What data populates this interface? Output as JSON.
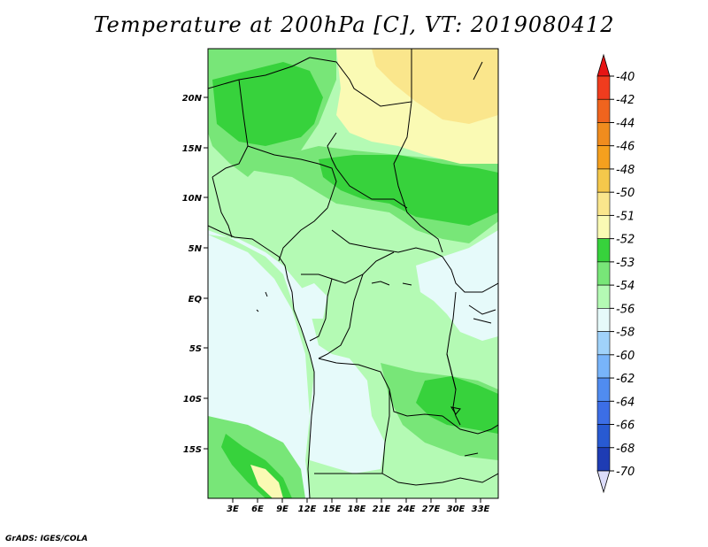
{
  "title": "Temperature at 200hPa [C], VT: 2019080412",
  "footer": "GrADS: IGES/COLA",
  "map": {
    "lat_labels": [
      "20N",
      "15N",
      "10N",
      "5N",
      "EQ",
      "5S",
      "10S",
      "15S"
    ],
    "lon_labels": [
      "3E",
      "6E",
      "9E",
      "12E",
      "15E",
      "18E",
      "21E",
      "24E",
      "27E",
      "30E",
      "33E"
    ]
  },
  "colorbar": {
    "levels": [
      {
        "label": "-40",
        "color": "#f03c1e"
      },
      {
        "label": "-42",
        "color": "#f0641e"
      },
      {
        "label": "-44",
        "color": "#f08c1e"
      },
      {
        "label": "-46",
        "color": "#f5a01e"
      },
      {
        "label": "-48",
        "color": "#f5c84b"
      },
      {
        "label": "-50",
        "color": "#fae68c"
      },
      {
        "label": "-51",
        "color": "#fafab4"
      },
      {
        "label": "-52",
        "color": "#37d23c"
      },
      {
        "label": "-53",
        "color": "#78e678"
      },
      {
        "label": "-54",
        "color": "#b4fab4"
      },
      {
        "label": "-56",
        "color": "#e6fafa"
      },
      {
        "label": "-58",
        "color": "#a0d2fa"
      },
      {
        "label": "-60",
        "color": "#78b4fa"
      },
      {
        "label": "-62",
        "color": "#508cf0"
      },
      {
        "label": "-64",
        "color": "#3c6ee6"
      },
      {
        "label": "-66",
        "color": "#285ad2"
      },
      {
        "label": "-68",
        "color": "#1e3cb4"
      },
      {
        "label": "-70",
        "color": "#14148c"
      }
    ],
    "top_color": "#e61414",
    "bottom_color": "#dcdcfa"
  },
  "field_colors": {
    "warm_orange": "#fae68c",
    "pale_yellow": "#fafab4",
    "green_dark": "#37d23c",
    "green_mid": "#78e678",
    "green_light": "#b4fab4",
    "cyan_pale": "#e6fafa"
  }
}
